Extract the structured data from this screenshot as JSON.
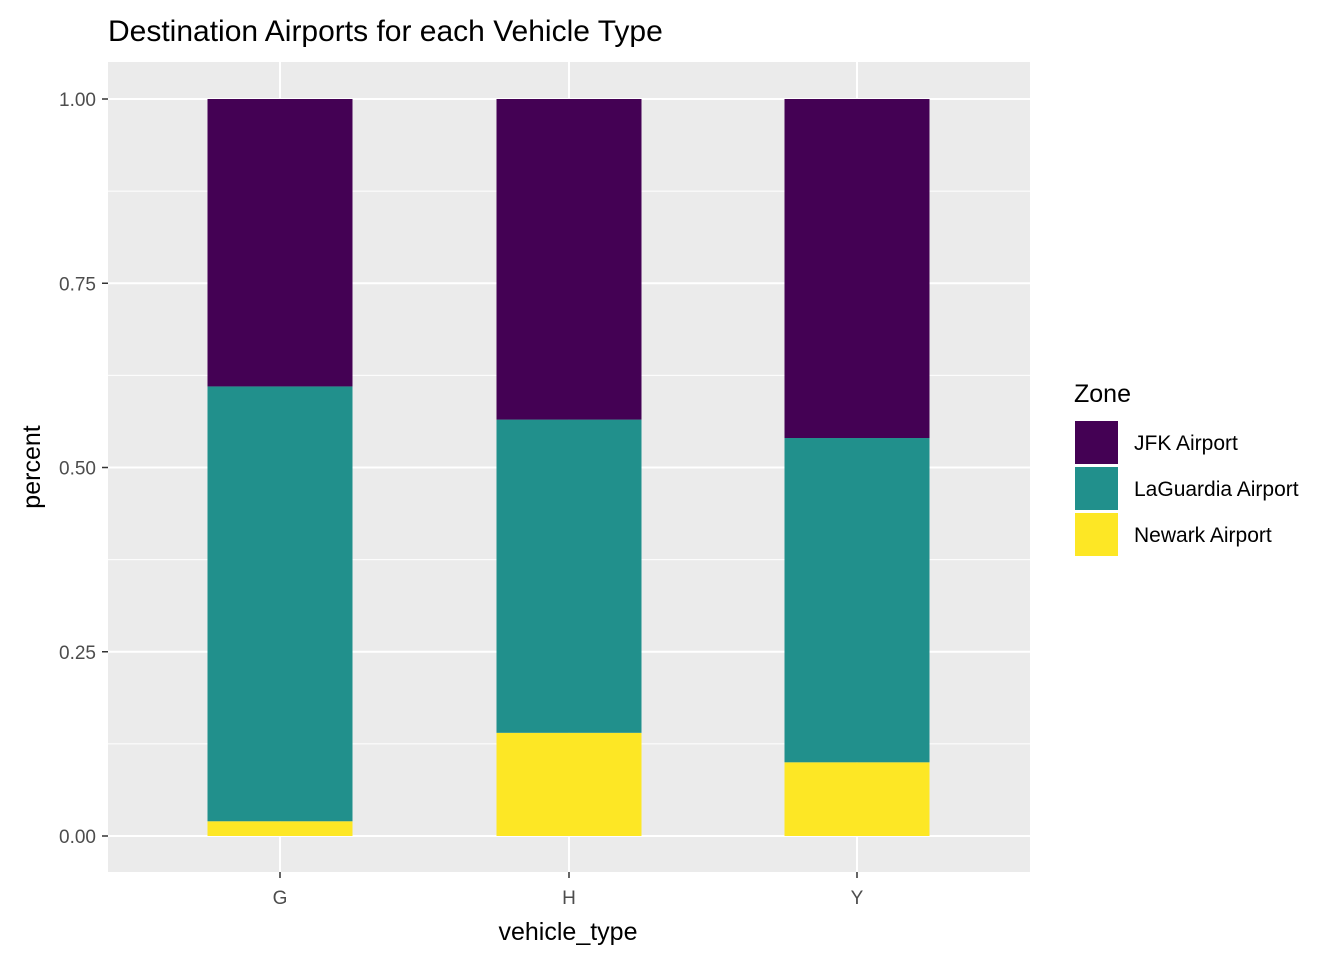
{
  "chart_data": {
    "type": "bar",
    "stacked": true,
    "title": "Destination Airports for each Vehicle Type",
    "xlabel": "vehicle_type",
    "ylabel": "percent",
    "categories": [
      "G",
      "H",
      "Y"
    ],
    "ylim": [
      0,
      1
    ],
    "yticks": [
      "0.00",
      "0.25",
      "0.50",
      "0.75",
      "1.00"
    ],
    "grid": true,
    "legend": {
      "title": "Zone",
      "position": "right"
    },
    "series": [
      {
        "name": "Newark Airport",
        "color": "#FDE725",
        "values": [
          0.02,
          0.14,
          0.1
        ]
      },
      {
        "name": "LaGuardia Airport",
        "color": "#21908C",
        "values": [
          0.59,
          0.425,
          0.44
        ]
      },
      {
        "name": "JFK Airport",
        "color": "#440154",
        "values": [
          0.39,
          0.435,
          0.46
        ]
      }
    ],
    "legend_order": [
      "JFK Airport",
      "LaGuardia Airport",
      "Newark Airport"
    ]
  }
}
